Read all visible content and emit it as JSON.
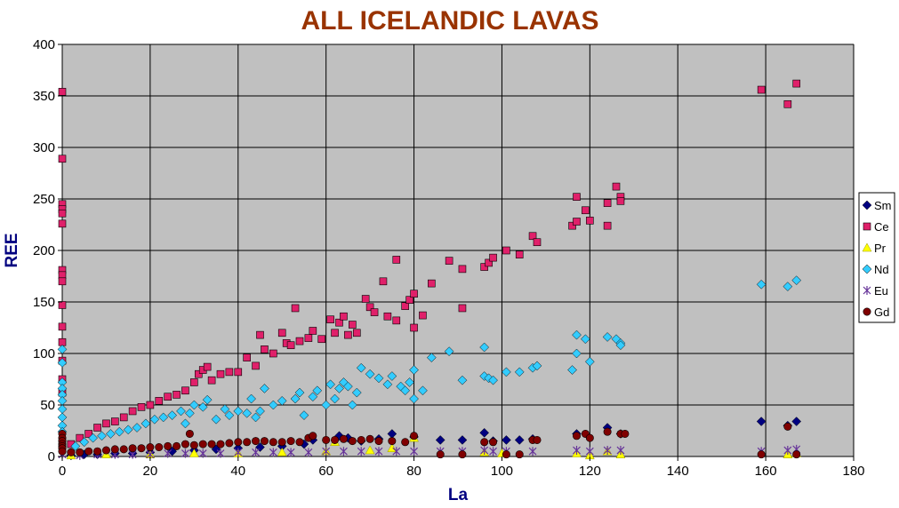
{
  "chart_data": {
    "type": "scatter",
    "title": "ALL ICELANDIC LAVAS",
    "xlabel": "La",
    "ylabel": "REE",
    "xlim": [
      0,
      180
    ],
    "ylim": [
      0,
      400
    ],
    "xticks": [
      0,
      20,
      40,
      60,
      80,
      100,
      120,
      140,
      160,
      180
    ],
    "yticks": [
      0,
      50,
      100,
      150,
      200,
      250,
      300,
      350,
      400
    ],
    "grid": true,
    "legend_position": "right",
    "colors": {
      "title": "#993300",
      "axis_label": "#000080",
      "plot_background": "#c0c0c0",
      "grid": "#000000"
    },
    "series": [
      {
        "name": "Sm",
        "marker": "diamond",
        "color": "#000080",
        "points": [
          [
            2,
            1
          ],
          [
            5,
            2
          ],
          [
            8,
            2
          ],
          [
            12,
            3
          ],
          [
            16,
            3
          ],
          [
            20,
            4
          ],
          [
            25,
            5
          ],
          [
            30,
            6
          ],
          [
            35,
            7
          ],
          [
            40,
            8
          ],
          [
            45,
            9
          ],
          [
            50,
            10
          ],
          [
            55,
            12
          ],
          [
            57,
            16
          ],
          [
            63,
            20
          ],
          [
            65,
            18
          ],
          [
            68,
            15
          ],
          [
            72,
            17
          ],
          [
            75,
            22
          ],
          [
            80,
            19
          ],
          [
            86,
            16
          ],
          [
            91,
            16
          ],
          [
            96,
            23
          ],
          [
            98,
            15
          ],
          [
            101,
            16
          ],
          [
            104,
            16
          ],
          [
            107,
            17
          ],
          [
            117,
            22
          ],
          [
            124,
            28
          ],
          [
            127,
            22
          ],
          [
            159,
            34
          ],
          [
            165,
            30
          ],
          [
            167,
            34
          ]
        ]
      },
      {
        "name": "Ce",
        "marker": "square",
        "color": "#e0206a",
        "points": [
          [
            0,
            354
          ],
          [
            0,
            289
          ],
          [
            0,
            245
          ],
          [
            0,
            240
          ],
          [
            0,
            236
          ],
          [
            0,
            226
          ],
          [
            0,
            181
          ],
          [
            0,
            176
          ],
          [
            0,
            170
          ],
          [
            0,
            147
          ],
          [
            0,
            126
          ],
          [
            0,
            111
          ],
          [
            0,
            93
          ],
          [
            0,
            75
          ],
          [
            0,
            62
          ],
          [
            2,
            12
          ],
          [
            4,
            18
          ],
          [
            6,
            22
          ],
          [
            8,
            28
          ],
          [
            10,
            32
          ],
          [
            12,
            34
          ],
          [
            14,
            38
          ],
          [
            16,
            44
          ],
          [
            18,
            48
          ],
          [
            20,
            50
          ],
          [
            22,
            54
          ],
          [
            24,
            58
          ],
          [
            26,
            60
          ],
          [
            28,
            64
          ],
          [
            30,
            72
          ],
          [
            31,
            80
          ],
          [
            32,
            84
          ],
          [
            33,
            87
          ],
          [
            34,
            74
          ],
          [
            36,
            80
          ],
          [
            38,
            82
          ],
          [
            40,
            82
          ],
          [
            42,
            96
          ],
          [
            44,
            88
          ],
          [
            45,
            118
          ],
          [
            46,
            104
          ],
          [
            48,
            100
          ],
          [
            50,
            120
          ],
          [
            51,
            110
          ],
          [
            52,
            108
          ],
          [
            53,
            144
          ],
          [
            54,
            112
          ],
          [
            56,
            115
          ],
          [
            57,
            122
          ],
          [
            59,
            114
          ],
          [
            61,
            133
          ],
          [
            62,
            120
          ],
          [
            63,
            130
          ],
          [
            64,
            136
          ],
          [
            65,
            118
          ],
          [
            66,
            128
          ],
          [
            67,
            120
          ],
          [
            69,
            153
          ],
          [
            70,
            145
          ],
          [
            71,
            140
          ],
          [
            73,
            170
          ],
          [
            74,
            136
          ],
          [
            76,
            132
          ],
          [
            76,
            191
          ],
          [
            78,
            146
          ],
          [
            79,
            152
          ],
          [
            80,
            158
          ],
          [
            80,
            125
          ],
          [
            82,
            137
          ],
          [
            84,
            168
          ],
          [
            88,
            190
          ],
          [
            91,
            144
          ],
          [
            91,
            182
          ],
          [
            96,
            184
          ],
          [
            97,
            188
          ],
          [
            98,
            193
          ],
          [
            101,
            200
          ],
          [
            104,
            196
          ],
          [
            107,
            214
          ],
          [
            108,
            208
          ],
          [
            116,
            224
          ],
          [
            117,
            252
          ],
          [
            117,
            228
          ],
          [
            119,
            239
          ],
          [
            120,
            229
          ],
          [
            124,
            246
          ],
          [
            124,
            224
          ],
          [
            126,
            262
          ],
          [
            127,
            252
          ],
          [
            127,
            248
          ],
          [
            159,
            356
          ],
          [
            165,
            342
          ],
          [
            167,
            362
          ]
        ]
      },
      {
        "name": "Pr",
        "marker": "triangle",
        "color": "#ffff00",
        "points": [
          [
            2,
            1
          ],
          [
            10,
            2
          ],
          [
            20,
            2
          ],
          [
            30,
            3
          ],
          [
            40,
            3
          ],
          [
            50,
            4
          ],
          [
            60,
            5
          ],
          [
            62,
            14
          ],
          [
            70,
            6
          ],
          [
            75,
            8
          ],
          [
            80,
            18
          ],
          [
            96,
            4
          ],
          [
            100,
            3
          ],
          [
            117,
            3
          ],
          [
            120,
            1
          ],
          [
            124,
            5
          ],
          [
            127,
            2
          ],
          [
            165,
            2
          ],
          [
            167,
            3
          ]
        ]
      },
      {
        "name": "Nd",
        "marker": "diamond",
        "color": "#33ccff",
        "points": [
          [
            0,
            104
          ],
          [
            0,
            91
          ],
          [
            0,
            72
          ],
          [
            0,
            66
          ],
          [
            0,
            60
          ],
          [
            0,
            54
          ],
          [
            0,
            46
          ],
          [
            0,
            38
          ],
          [
            0,
            30
          ],
          [
            0,
            24
          ],
          [
            3,
            10
          ],
          [
            5,
            14
          ],
          [
            7,
            18
          ],
          [
            9,
            20
          ],
          [
            11,
            22
          ],
          [
            13,
            24
          ],
          [
            15,
            26
          ],
          [
            17,
            28
          ],
          [
            19,
            32
          ],
          [
            21,
            36
          ],
          [
            23,
            38
          ],
          [
            25,
            40
          ],
          [
            27,
            44
          ],
          [
            28,
            32
          ],
          [
            29,
            42
          ],
          [
            30,
            50
          ],
          [
            32,
            48
          ],
          [
            33,
            55
          ],
          [
            35,
            36
          ],
          [
            37,
            46
          ],
          [
            38,
            40
          ],
          [
            40,
            44
          ],
          [
            42,
            42
          ],
          [
            43,
            56
          ],
          [
            44,
            38
          ],
          [
            45,
            44
          ],
          [
            46,
            66
          ],
          [
            48,
            50
          ],
          [
            50,
            54
          ],
          [
            53,
            56
          ],
          [
            54,
            62
          ],
          [
            55,
            40
          ],
          [
            57,
            58
          ],
          [
            58,
            64
          ],
          [
            60,
            50
          ],
          [
            61,
            70
          ],
          [
            62,
            56
          ],
          [
            63,
            66
          ],
          [
            64,
            72
          ],
          [
            65,
            68
          ],
          [
            66,
            50
          ],
          [
            67,
            62
          ],
          [
            68,
            86
          ],
          [
            70,
            80
          ],
          [
            72,
            76
          ],
          [
            74,
            70
          ],
          [
            75,
            78
          ],
          [
            77,
            68
          ],
          [
            78,
            64
          ],
          [
            79,
            72
          ],
          [
            80,
            84
          ],
          [
            80,
            56
          ],
          [
            82,
            64
          ],
          [
            84,
            96
          ],
          [
            88,
            102
          ],
          [
            91,
            74
          ],
          [
            96,
            106
          ],
          [
            96,
            78
          ],
          [
            97,
            76
          ],
          [
            98,
            74
          ],
          [
            101,
            82
          ],
          [
            104,
            82
          ],
          [
            107,
            86
          ],
          [
            108,
            88
          ],
          [
            116,
            84
          ],
          [
            117,
            118
          ],
          [
            117,
            100
          ],
          [
            119,
            114
          ],
          [
            120,
            92
          ],
          [
            124,
            116
          ],
          [
            126,
            114
          ],
          [
            127,
            110
          ],
          [
            127,
            108
          ],
          [
            159,
            167
          ],
          [
            165,
            165
          ],
          [
            167,
            171
          ]
        ]
      },
      {
        "name": "Eu",
        "marker": "asterisk",
        "color": "#663399",
        "points": [
          [
            0,
            2
          ],
          [
            4,
            1
          ],
          [
            8,
            2
          ],
          [
            12,
            2
          ],
          [
            16,
            2
          ],
          [
            20,
            2
          ],
          [
            24,
            3
          ],
          [
            28,
            3
          ],
          [
            32,
            3
          ],
          [
            36,
            3
          ],
          [
            40,
            4
          ],
          [
            44,
            4
          ],
          [
            48,
            4
          ],
          [
            52,
            4
          ],
          [
            56,
            4
          ],
          [
            60,
            5
          ],
          [
            64,
            5
          ],
          [
            68,
            5
          ],
          [
            72,
            5
          ],
          [
            76,
            5
          ],
          [
            80,
            5
          ],
          [
            86,
            5
          ],
          [
            91,
            5
          ],
          [
            96,
            6
          ],
          [
            98,
            5
          ],
          [
            101,
            5
          ],
          [
            107,
            5
          ],
          [
            117,
            6
          ],
          [
            120,
            5
          ],
          [
            124,
            6
          ],
          [
            127,
            6
          ],
          [
            159,
            5
          ],
          [
            165,
            6
          ],
          [
            167,
            7
          ]
        ]
      },
      {
        "name": "Gd",
        "marker": "circle",
        "color": "#800000",
        "points": [
          [
            0,
            22
          ],
          [
            0,
            18
          ],
          [
            0,
            15
          ],
          [
            0,
            12
          ],
          [
            0,
            10
          ],
          [
            0,
            8
          ],
          [
            0,
            5
          ],
          [
            2,
            4
          ],
          [
            4,
            4
          ],
          [
            6,
            5
          ],
          [
            8,
            5
          ],
          [
            10,
            6
          ],
          [
            12,
            7
          ],
          [
            14,
            7
          ],
          [
            16,
            8
          ],
          [
            18,
            8
          ],
          [
            20,
            9
          ],
          [
            22,
            9
          ],
          [
            24,
            10
          ],
          [
            26,
            10
          ],
          [
            28,
            12
          ],
          [
            29,
            22
          ],
          [
            30,
            11
          ],
          [
            32,
            12
          ],
          [
            34,
            12
          ],
          [
            36,
            12
          ],
          [
            38,
            13
          ],
          [
            40,
            14
          ],
          [
            42,
            14
          ],
          [
            44,
            15
          ],
          [
            46,
            15
          ],
          [
            48,
            14
          ],
          [
            50,
            14
          ],
          [
            52,
            15
          ],
          [
            54,
            14
          ],
          [
            56,
            18
          ],
          [
            57,
            20
          ],
          [
            60,
            16
          ],
          [
            62,
            16
          ],
          [
            64,
            17
          ],
          [
            66,
            15
          ],
          [
            68,
            16
          ],
          [
            70,
            17
          ],
          [
            72,
            15
          ],
          [
            75,
            15
          ],
          [
            78,
            14
          ],
          [
            80,
            20
          ],
          [
            86,
            2
          ],
          [
            91,
            2
          ],
          [
            96,
            14
          ],
          [
            98,
            14
          ],
          [
            101,
            2
          ],
          [
            104,
            2
          ],
          [
            107,
            16
          ],
          [
            108,
            16
          ],
          [
            117,
            20
          ],
          [
            119,
            22
          ],
          [
            120,
            18
          ],
          [
            124,
            24
          ],
          [
            127,
            22
          ],
          [
            128,
            22
          ],
          [
            159,
            2
          ],
          [
            165,
            29
          ],
          [
            167,
            2
          ]
        ]
      }
    ]
  }
}
